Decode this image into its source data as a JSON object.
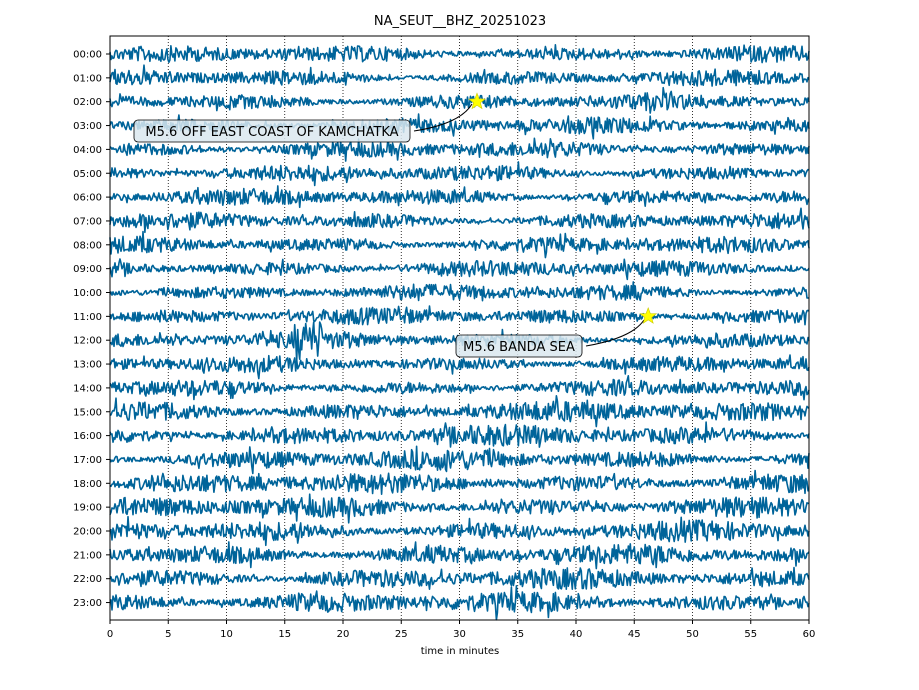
{
  "chart_data": {
    "type": "line",
    "title": "NA_SEUT__BHZ_20251023",
    "xlabel": "time in minutes",
    "ylabel": "",
    "xlim": [
      0,
      60
    ],
    "x_ticks": [
      0,
      5,
      10,
      15,
      20,
      25,
      30,
      35,
      40,
      45,
      50,
      55,
      60
    ],
    "x_tick_labels": [
      "0",
      "5",
      "10",
      "15",
      "20",
      "25",
      "30",
      "35",
      "40",
      "45",
      "50",
      "55",
      "60"
    ],
    "y_tick_labels": [
      "00:00",
      "01:00",
      "02:00",
      "03:00",
      "04:00",
      "05:00",
      "06:00",
      "07:00",
      "08:00",
      "09:00",
      "10:00",
      "11:00",
      "12:00",
      "13:00",
      "14:00",
      "15:00",
      "16:00",
      "17:00",
      "18:00",
      "19:00",
      "20:00",
      "21:00",
      "22:00",
      "23:00"
    ],
    "vertical_gridlines": true,
    "trace_color": "#00649a",
    "annotations": [
      {
        "label": "M5.6 OFF EAST COAST OF KAMCHATKA",
        "hour": 2,
        "minute": 31.5,
        "marker_color": "#ffff00"
      },
      {
        "label": "M5.6 BANDA SEA",
        "hour": 11,
        "minute": 46.2,
        "marker_color": "#ffff00"
      }
    ]
  }
}
